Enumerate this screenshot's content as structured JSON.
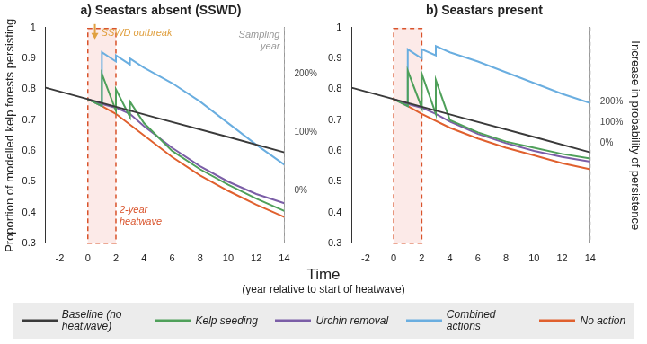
{
  "figure": {
    "x_label": "Time",
    "x_sublabel": "(year relative to start of heatwave)",
    "legend": "bottom"
  },
  "chart_data": [
    {
      "type": "line",
      "title": "a) Seastars absent (SSWD)",
      "y_label": "Proportion of modelled kelp forests persisting",
      "xlim": [
        -3,
        14
      ],
      "xticks": [
        -2,
        0,
        2,
        4,
        6,
        8,
        10,
        12,
        14
      ],
      "ylim": [
        0.3,
        1
      ],
      "yticks": [
        0.3,
        0.4,
        0.5,
        0.6,
        0.7,
        0.8,
        0.9,
        1
      ],
      "y2lim": [
        -91,
        279
      ],
      "y2ticks": [
        {
          "value": 0,
          "label": "0%"
        },
        {
          "value": 100,
          "label": "100%"
        },
        {
          "value": 200,
          "label": "200%"
        }
      ],
      "grid": false,
      "sswd_outbreak": {
        "label": "SSWD outbreak",
        "x": 0.5
      },
      "heatwave": {
        "label": "2-year heatwave",
        "start": 0,
        "end": 2
      },
      "sampling_year": {
        "label": "Sampling year",
        "x": 14
      },
      "series": [
        {
          "name": "Baseline (no heatwave)",
          "color": "#3a3a3a",
          "x": [
            -3,
            0,
            5,
            10,
            14
          ],
          "values": [
            0.805,
            0.768,
            0.706,
            0.645,
            0.595
          ]
        },
        {
          "name": "Kelp seeding",
          "color": "#4fa05a",
          "x": [
            0,
            1,
            1,
            2,
            2,
            3,
            3,
            4,
            6,
            8,
            10,
            12,
            14
          ],
          "values": [
            0.768,
            0.745,
            0.85,
            0.73,
            0.8,
            0.71,
            0.76,
            0.69,
            0.6,
            0.54,
            0.49,
            0.445,
            0.405
          ]
        },
        {
          "name": "Urchin removal",
          "color": "#7b5ea7",
          "x": [
            0,
            1,
            2,
            3,
            4,
            6,
            8,
            10,
            12,
            14
          ],
          "values": [
            0.768,
            0.752,
            0.74,
            0.72,
            0.68,
            0.61,
            0.55,
            0.5,
            0.46,
            0.43
          ]
        },
        {
          "name": "Combined actions",
          "color": "#6aaee0",
          "x": [
            0,
            1,
            1,
            2,
            2,
            3,
            3,
            4,
            6,
            8,
            10,
            12,
            14
          ],
          "values": [
            0.768,
            0.745,
            0.92,
            0.89,
            0.91,
            0.88,
            0.9,
            0.87,
            0.82,
            0.76,
            0.69,
            0.62,
            0.555
          ]
        },
        {
          "name": "No action",
          "color": "#e0602e",
          "x": [
            0,
            1,
            2,
            4,
            6,
            8,
            10,
            12,
            14
          ],
          "values": [
            0.768,
            0.745,
            0.72,
            0.65,
            0.58,
            0.52,
            0.47,
            0.425,
            0.385
          ]
        }
      ]
    },
    {
      "type": "line",
      "title": "b) Seastars present",
      "y2_label": "Increase in probability of persistence",
      "xlim": [
        -3,
        14
      ],
      "xticks": [
        -2,
        0,
        2,
        4,
        6,
        8,
        10,
        12,
        14
      ],
      "ylim": [
        0.3,
        1
      ],
      "yticks": [
        0.3,
        0.4,
        0.5,
        0.6,
        0.7,
        0.8,
        0.9,
        1
      ],
      "y2lim": [
        -481,
        556
      ],
      "y2ticks": [
        {
          "value": 0,
          "label": "0%"
        },
        {
          "value": 100,
          "label": "100%"
        },
        {
          "value": 200,
          "label": "200%"
        }
      ],
      "grid": false,
      "heatwave": {
        "start": 0,
        "end": 2
      },
      "sampling_year": {
        "x": 14
      },
      "series": [
        {
          "name": "Baseline (no heatwave)",
          "color": "#3a3a3a",
          "x": [
            -3,
            0,
            5,
            10,
            14
          ],
          "values": [
            0.805,
            0.768,
            0.706,
            0.645,
            0.595
          ]
        },
        {
          "name": "Kelp seeding",
          "color": "#4fa05a",
          "x": [
            0,
            1,
            1,
            2,
            2,
            3,
            3,
            4,
            6,
            8,
            10,
            12,
            14
          ],
          "values": [
            0.768,
            0.745,
            0.86,
            0.74,
            0.85,
            0.72,
            0.83,
            0.7,
            0.66,
            0.63,
            0.61,
            0.59,
            0.575
          ]
        },
        {
          "name": "Urchin removal",
          "color": "#7b5ea7",
          "x": [
            0,
            1,
            2,
            3,
            4,
            6,
            8,
            10,
            12,
            14
          ],
          "values": [
            0.768,
            0.752,
            0.74,
            0.72,
            0.695,
            0.655,
            0.625,
            0.6,
            0.58,
            0.565
          ]
        },
        {
          "name": "Combined actions",
          "color": "#6aaee0",
          "x": [
            0,
            1,
            1,
            2,
            2,
            3,
            3,
            4,
            6,
            8,
            10,
            12,
            14
          ],
          "values": [
            0.768,
            0.745,
            0.93,
            0.9,
            0.93,
            0.91,
            0.94,
            0.92,
            0.89,
            0.855,
            0.82,
            0.785,
            0.755
          ]
        },
        {
          "name": "No action",
          "color": "#e0602e",
          "x": [
            0,
            1,
            2,
            4,
            6,
            8,
            10,
            12,
            14
          ],
          "values": [
            0.768,
            0.745,
            0.72,
            0.675,
            0.64,
            0.61,
            0.585,
            0.56,
            0.54
          ]
        }
      ]
    }
  ]
}
